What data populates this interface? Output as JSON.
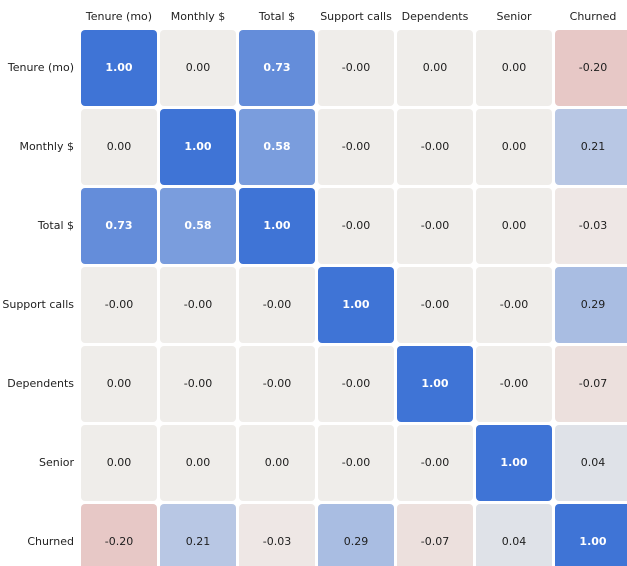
{
  "chart_data": {
    "type": "heatmap",
    "columns": [
      "Tenure (mo)",
      "Monthly $",
      "Total $",
      "Support calls",
      "Dependents",
      "Senior",
      "Churned"
    ],
    "rows": [
      "Tenure (mo)",
      "Monthly $",
      "Total $",
      "Support calls",
      "Dependents",
      "Senior",
      "Churned"
    ],
    "cell_labels": [
      [
        "1.00",
        "0.00",
        "0.73",
        "-0.00",
        "0.00",
        "0.00",
        "-0.20"
      ],
      [
        "0.00",
        "1.00",
        "0.58",
        "-0.00",
        "-0.00",
        "0.00",
        "0.21"
      ],
      [
        "0.73",
        "0.58",
        "1.00",
        "-0.00",
        "-0.00",
        "0.00",
        "-0.03"
      ],
      [
        "-0.00",
        "-0.00",
        "-0.00",
        "1.00",
        "-0.00",
        "-0.00",
        "0.29"
      ],
      [
        "0.00",
        "-0.00",
        "-0.00",
        "-0.00",
        "1.00",
        "-0.00",
        "-0.07"
      ],
      [
        "0.00",
        "0.00",
        "0.00",
        "-0.00",
        "-0.00",
        "1.00",
        "0.04"
      ],
      [
        "-0.20",
        "0.21",
        "-0.03",
        "0.29",
        "-0.07",
        "0.04",
        "1.00"
      ]
    ],
    "values": [
      [
        1.0,
        0.0,
        0.73,
        0.0,
        0.0,
        0.0,
        -0.2
      ],
      [
        0.0,
        1.0,
        0.58,
        0.0,
        0.0,
        0.0,
        0.21
      ],
      [
        0.73,
        0.58,
        1.0,
        0.0,
        0.0,
        0.0,
        -0.03
      ],
      [
        0.0,
        0.0,
        0.0,
        1.0,
        0.0,
        0.0,
        0.29
      ],
      [
        0.0,
        0.0,
        0.0,
        0.0,
        1.0,
        0.0,
        -0.07
      ],
      [
        0.0,
        0.0,
        0.0,
        0.0,
        0.0,
        1.0,
        0.04
      ],
      [
        -0.2,
        0.21,
        -0.03,
        0.29,
        -0.07,
        0.04,
        1.0
      ]
    ],
    "color_scale": {
      "positive": "#3f74d6",
      "neutral": "#efedea",
      "negative": "#e7c8c6"
    },
    "title": "",
    "xlabel": "",
    "ylabel": ""
  }
}
